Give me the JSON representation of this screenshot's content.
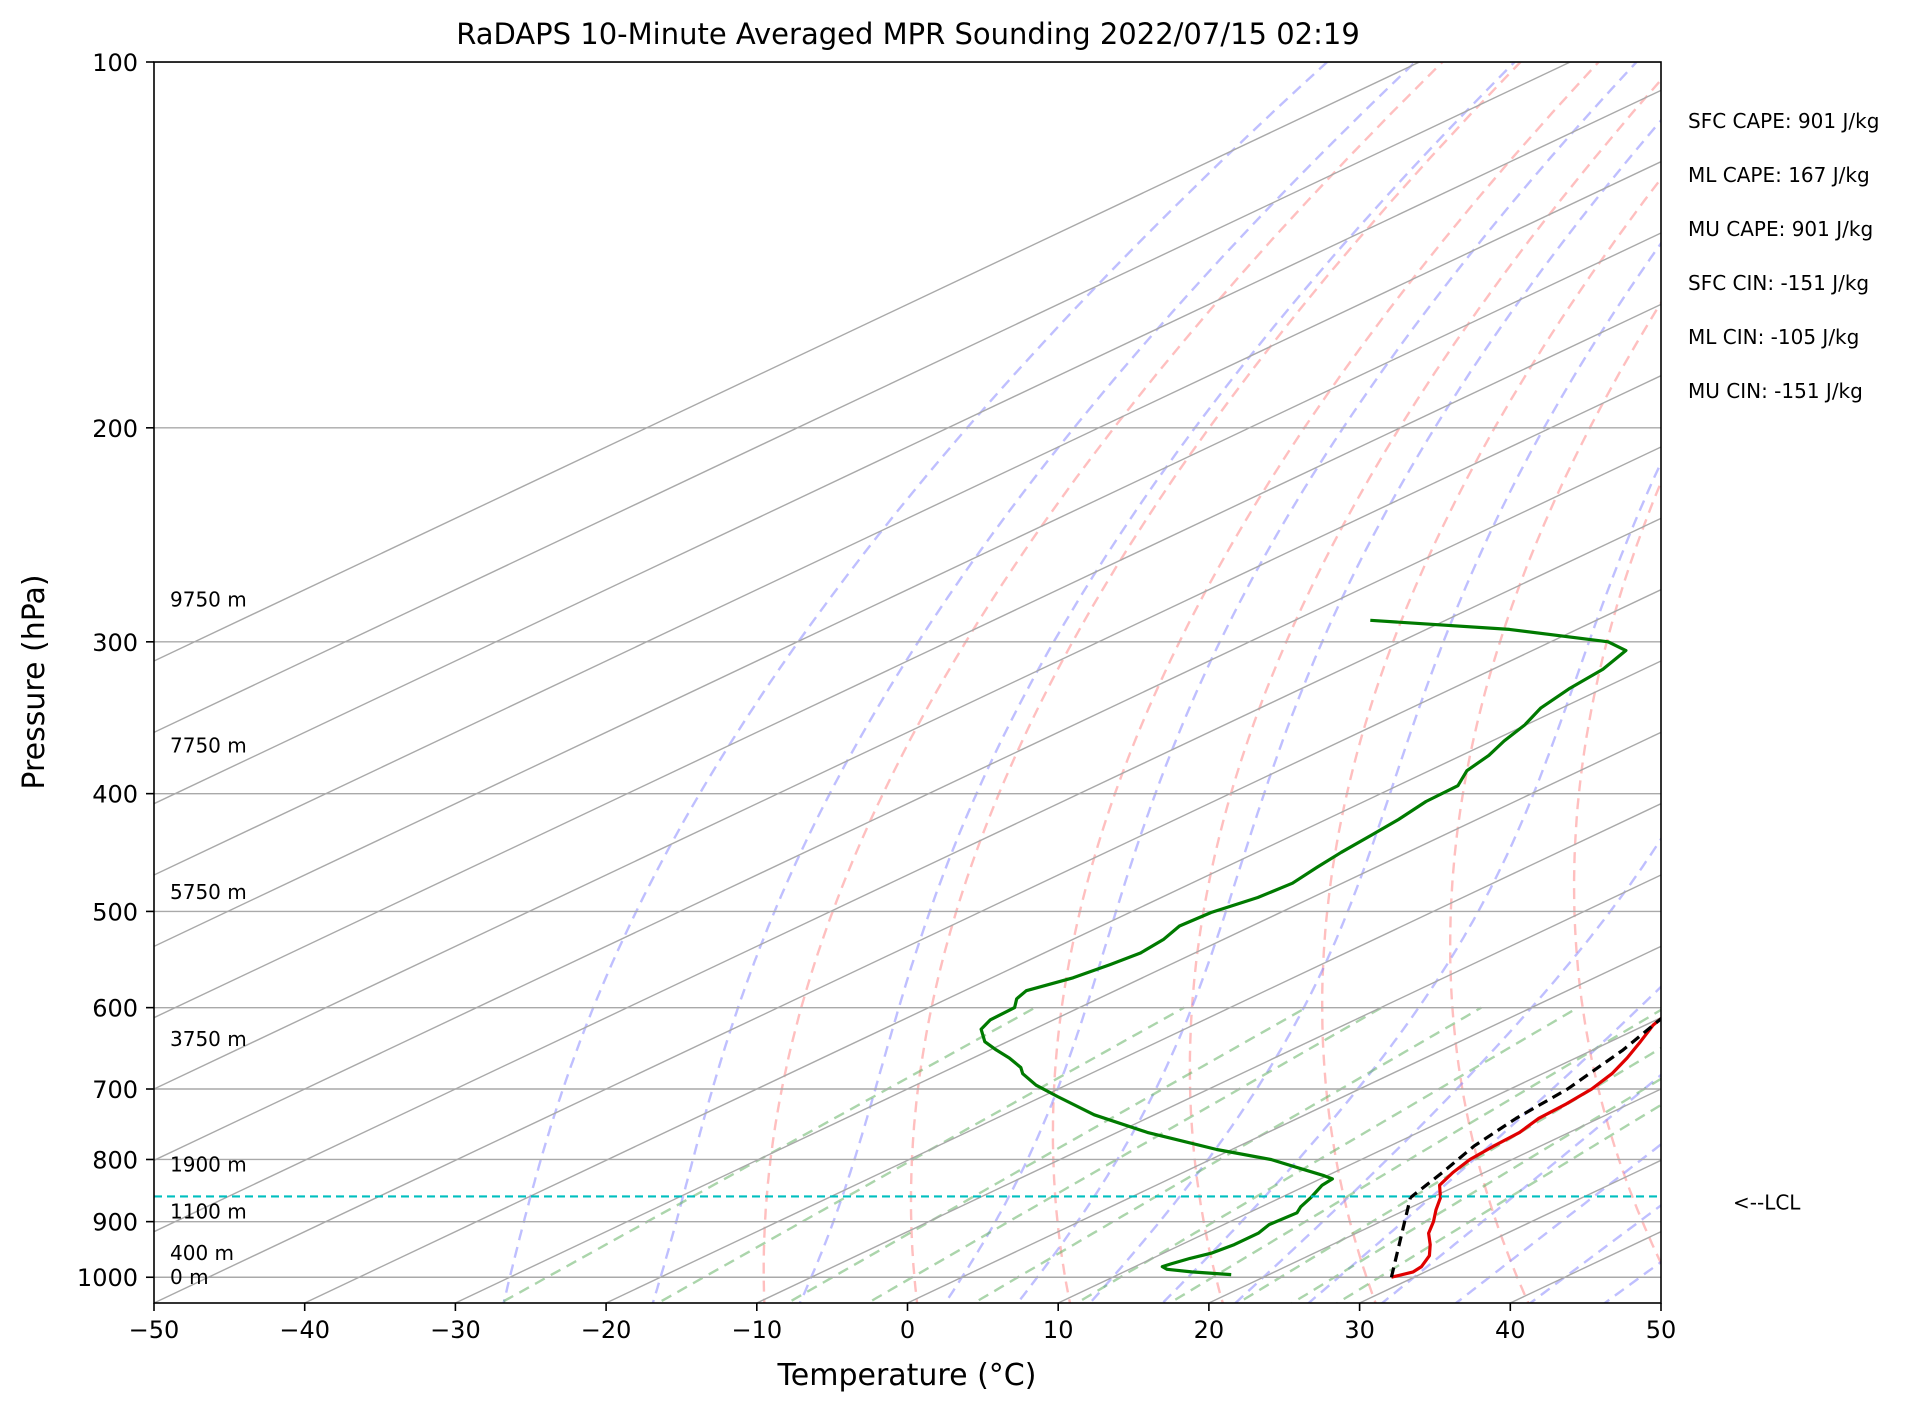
{
  "chart_data": {
    "type": "line",
    "title": "RaDAPS 10-Minute Averaged MPR Sounding 2022/07/15 02:19",
    "xlabel": "Temperature (°C)",
    "ylabel": "Pressure (hPa)",
    "xlim": [
      -50,
      50
    ],
    "ylim": [
      1050,
      100
    ],
    "y_scale": "log",
    "x_ticks": [
      -50,
      -40,
      -30,
      -20,
      -10,
      0,
      10,
      20,
      30,
      40,
      50
    ],
    "x_tick_labels": [
      "−50",
      "−40",
      "−30",
      "−20",
      "−10",
      "0",
      "10",
      "20",
      "30",
      "40",
      "50"
    ],
    "y_ticks": [
      1000,
      900,
      800,
      700,
      600,
      500,
      400,
      300,
      200,
      100
    ],
    "y_tick_labels": [
      "1000",
      "900",
      "800",
      "700",
      "600",
      "500",
      "400",
      "300",
      "200",
      "100"
    ],
    "series": [
      {
        "role": "temperature",
        "color": "#e00000",
        "style": "solid",
        "points": [
          [
            28.5,
            1000
          ],
          [
            29.2,
            990
          ],
          [
            29.0,
            980
          ],
          [
            28.0,
            960
          ],
          [
            26.5,
            940
          ],
          [
            24.8,
            920
          ],
          [
            23.5,
            900
          ],
          [
            22.0,
            880
          ],
          [
            20.6,
            860
          ],
          [
            19.7,
            850
          ],
          [
            18.8,
            840
          ],
          [
            17.9,
            820
          ],
          [
            17.2,
            800
          ],
          [
            16.9,
            780
          ],
          [
            16.7,
            760
          ],
          [
            16.0,
            740
          ],
          [
            15.8,
            720
          ],
          [
            15.4,
            700
          ],
          [
            14.6,
            680
          ],
          [
            13.4,
            660
          ],
          [
            12.0,
            640
          ],
          [
            10.5,
            620
          ],
          [
            9.5,
            600
          ],
          [
            8.0,
            580
          ],
          [
            6.5,
            560
          ],
          [
            5.6,
            550
          ],
          [
            3.8,
            530
          ],
          [
            1.8,
            510
          ],
          [
            0.5,
            500
          ],
          [
            -1.3,
            480
          ],
          [
            -2.4,
            470
          ],
          [
            -2.2,
            460
          ],
          [
            -4.2,
            440
          ],
          [
            -4.8,
            430
          ],
          [
            -6.4,
            410
          ],
          [
            -7.5,
            400
          ],
          [
            -9.1,
            385
          ],
          [
            -10.5,
            370
          ],
          [
            -11.5,
            360
          ],
          [
            -13.0,
            345
          ],
          [
            -14.3,
            330
          ],
          [
            -15.5,
            315
          ],
          [
            -16.0,
            305
          ],
          [
            -17.0,
            295
          ],
          [
            -18.0,
            285
          ]
        ]
      },
      {
        "role": "dewpoint",
        "color": "#007a00",
        "style": "solid",
        "points": [
          [
            17.5,
            995
          ],
          [
            14.5,
            990
          ],
          [
            12.5,
            985
          ],
          [
            11.8,
            980
          ],
          [
            12.0,
            975
          ],
          [
            12.5,
            965
          ],
          [
            13.2,
            955
          ],
          [
            13.5,
            940
          ],
          [
            13.5,
            920
          ],
          [
            13.0,
            905
          ],
          [
            13.2,
            885
          ],
          [
            12.6,
            875
          ],
          [
            12.0,
            860
          ],
          [
            11.5,
            850
          ],
          [
            11.0,
            840
          ],
          [
            10.8,
            830
          ],
          [
            9.8,
            825
          ],
          [
            7.5,
            815
          ],
          [
            4.0,
            800
          ],
          [
            -1.0,
            785
          ],
          [
            -8.0,
            760
          ],
          [
            -14.0,
            735
          ],
          [
            -19.0,
            710
          ],
          [
            -22.0,
            695
          ],
          [
            -24.5,
            680
          ],
          [
            -25.5,
            672
          ],
          [
            -27.6,
            660
          ],
          [
            -29.6,
            650
          ],
          [
            -31.5,
            640
          ],
          [
            -33.5,
            625
          ],
          [
            -34.2,
            614
          ],
          [
            -34.3,
            600
          ],
          [
            -35.4,
            590
          ],
          [
            -35.9,
            581
          ],
          [
            -34.6,
            567
          ],
          [
            -34.0,
            553
          ],
          [
            -33.6,
            541
          ],
          [
            -34.0,
            527
          ],
          [
            -34.8,
            514
          ],
          [
            -34.6,
            501
          ],
          [
            -33.6,
            487
          ],
          [
            -33.3,
            474
          ],
          [
            -33.9,
            460
          ],
          [
            -34.4,
            447
          ],
          [
            -34.8,
            433
          ],
          [
            -35.2,
            420
          ],
          [
            -35.9,
            406
          ],
          [
            -36.0,
            394
          ],
          [
            -37.5,
            383
          ],
          [
            -38.2,
            372
          ],
          [
            -39.2,
            362
          ],
          [
            -40.1,
            351
          ],
          [
            -41.4,
            340
          ],
          [
            -42.2,
            328
          ],
          [
            -42.7,
            316
          ],
          [
            -43.8,
            305
          ],
          [
            -46.2,
            300
          ],
          [
            -54.5,
            293
          ],
          [
            -65.0,
            288
          ]
        ]
      },
      {
        "role": "parcel",
        "color": "#000000",
        "style": "dashed",
        "points": [
          [
            28.5,
            1000
          ],
          [
            18.6,
            860
          ],
          [
            17.2,
            820
          ],
          [
            15.6,
            780
          ],
          [
            14.5,
            740
          ],
          [
            13.8,
            700
          ],
          [
            12.0,
            650
          ],
          [
            9.5,
            600
          ],
          [
            6.6,
            550
          ],
          [
            3.4,
            500
          ],
          [
            -0.5,
            450
          ],
          [
            -5.0,
            400
          ],
          [
            -8.4,
            370
          ],
          [
            -10.7,
            350
          ],
          [
            -13.1,
            330
          ],
          [
            -14.8,
            317
          ],
          [
            -17.0,
            300
          ],
          [
            -18.5,
            290
          ],
          [
            -20.2,
            280
          ]
        ]
      }
    ],
    "lcl": {
      "pressure": 858,
      "label": "<--LCL"
    },
    "height_labels": [
      {
        "label": "9750 m",
        "pressure": 277
      },
      {
        "label": "7750 m",
        "pressure": 365
      },
      {
        "label": "5750 m",
        "pressure": 482
      },
      {
        "label": "3750 m",
        "pressure": 637
      },
      {
        "label": "1900 m",
        "pressure": 808
      },
      {
        "label": "1100 m",
        "pressure": 883
      },
      {
        "label": "400 m",
        "pressure": 955
      },
      {
        "label": "0 m",
        "pressure": 1000
      }
    ],
    "indices": [
      "SFC CAPE: 901 J/kg",
      "ML CAPE: 167 J/kg",
      "MU CAPE: 901 J/kg",
      "SFC CIN: -151 J/kg",
      "ML CIN: -105 J/kg",
      "MU CIN: -151 J/kg"
    ],
    "background_lines": {
      "isotherms": {
        "color": "#a9a9a9",
        "style": "solid"
      },
      "isobars": {
        "color": "#a9a9a9",
        "style": "solid"
      },
      "dry_adiabats": {
        "color": "#ff8080",
        "style": "dashed",
        "theta_values": [
          260,
          270,
          280,
          290,
          300,
          310,
          320,
          330,
          340,
          350,
          360,
          370,
          380,
          390,
          400,
          410,
          420,
          430,
          440,
          450,
          460,
          470,
          480,
          490,
          500
        ]
      },
      "moist_adiabats": {
        "color": "#8080ff",
        "style": "dashed",
        "start_temps_1000": [
          -30,
          -20,
          -10,
          0,
          5,
          10,
          15,
          20,
          25,
          30,
          35,
          40,
          45
        ]
      },
      "mixing_ratio": {
        "color": "#66b266",
        "style": "dashed",
        "values_gkg": [
          0.4,
          1,
          2,
          3,
          5,
          8,
          12,
          16,
          20,
          24
        ]
      }
    },
    "grid": true,
    "legend": "none"
  }
}
